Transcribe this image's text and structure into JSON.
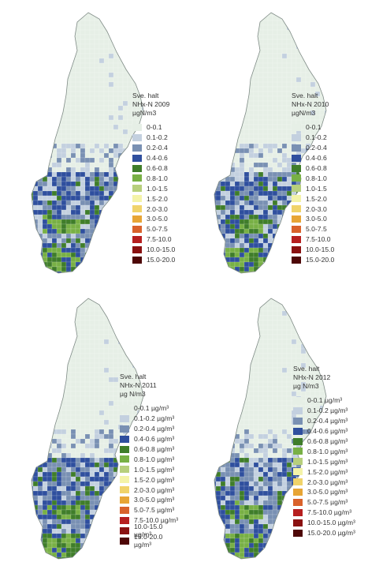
{
  "panels": [
    {
      "title_lines": [
        "Sve. halt",
        "NHx-N 2009",
        "µgN/m3"
      ],
      "legend": [
        "0-0.1",
        "0.1-0.2",
        "0.2-0.4",
        "0.4-0.6",
        "0.6-0.8",
        "0.8-1.0",
        "1.0-1.5",
        "1.5-2.0",
        "2.0-3.0",
        "3.0-5.0",
        "5.0-7.5",
        "7.5-10.0",
        "10.0-15.0",
        "15.0-20.0"
      ]
    },
    {
      "title_lines": [
        "Sve. halt",
        "NHx-N 2010",
        "µgN/m3"
      ],
      "legend": [
        "0-0.1",
        "0.1-0.2",
        "0.2-0.4",
        "0.4-0.6",
        "0.6-0.8",
        "0.8-1.0",
        "1.0-1.5",
        "1.5-2.0",
        "2.0-3.0",
        "3.0-5.0",
        "5.0-7.5",
        "7.5-10.0",
        "10.0-15.0",
        "15.0-20.0"
      ]
    },
    {
      "title_lines": [
        "Sve. halt",
        "NHx-N 2011",
        "µg N/m3"
      ],
      "legend": [
        "0-0.1 µg/m³",
        "0.1-0.2 µg/m³",
        "0.2-0.4 µg/m³",
        "0.4-0.6 µg/m³",
        "0.6-0.8 µg/m³",
        "0.8-1.0 µg/m³",
        "1.0-1.5 µg/m³",
        "1.5-2.0 µg/m³",
        "2.0-3.0 µg/m³",
        "3.0-5.0 µg/m³",
        "5.0-7.5 µg/m³",
        "7.5-10.0 µg/m³",
        "10.0-15.0 µg/m³",
        "15.0-20.0 µg/m³"
      ]
    },
    {
      "title_lines": [
        "Sve. halt",
        "NHx-N 2012",
        "µg N/m3"
      ],
      "legend": [
        "0-0.1 µg/m³",
        "0.1-0.2 µg/m³",
        "0.2-0.4 µg/m³",
        "0.4-0.6 µg/m³",
        "0.6-0.8 µg/m³",
        "0.8-1.0 µg/m³",
        "1.0-1.5 µg/m³",
        "1.5-2.0 µg/m³",
        "2.0-3.0 µg/m³",
        "3.0-5.0 µg/m³",
        "5.0-7.5 µg/m³",
        "7.5-10.0 µg/m³",
        "10.0-15.0 µg/m³",
        "15.0-20.0 µg/m³"
      ]
    }
  ],
  "colors": [
    "#e6efe6",
    "#c3d0df",
    "#7990b3",
    "#2f4f9e",
    "#3f7d2a",
    "#78b045",
    "#b7cf7c",
    "#f4f3a8",
    "#f0d36a",
    "#e7a535",
    "#d9622b",
    "#b61f1f",
    "#8a1010",
    "#4e0707"
  ]
}
